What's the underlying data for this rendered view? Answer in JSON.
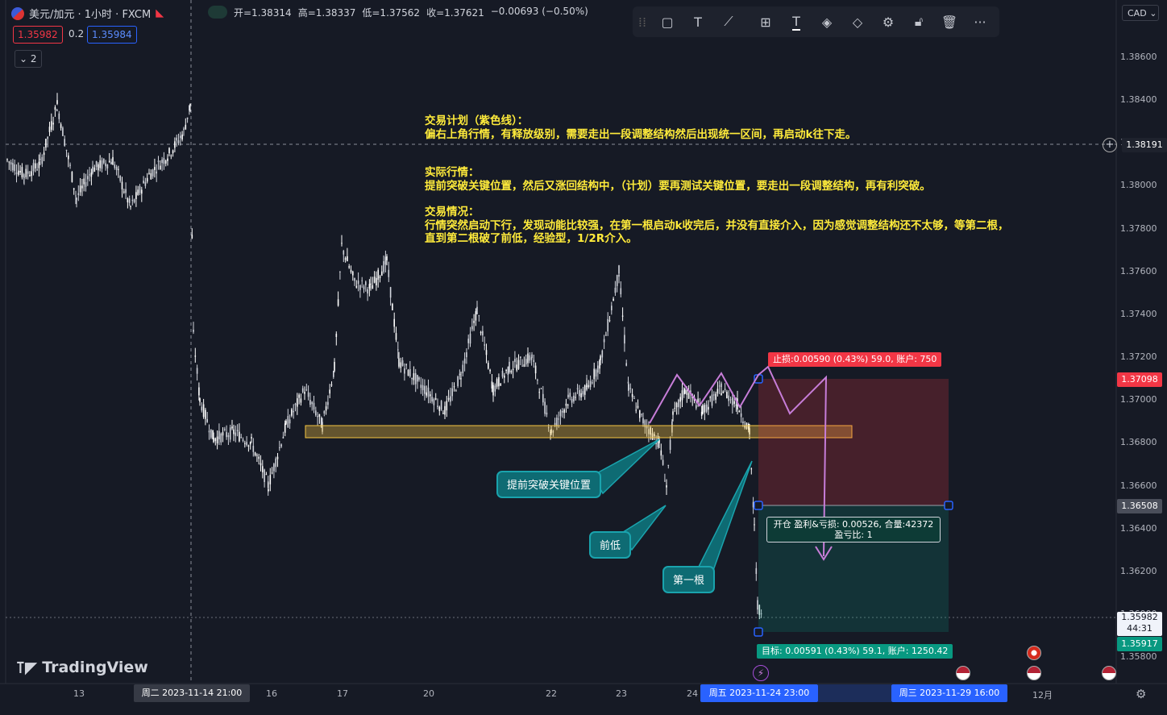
{
  "symbol": {
    "title": "美元/加元 · 1小时 · FXCM",
    "bid": "1.35982",
    "spread": "0.2",
    "ask": "1.35984",
    "indicators_toggle": "2"
  },
  "ohlc": {
    "open": "开=1.38314",
    "high": "高=1.38337",
    "low": "低=1.37562",
    "close": "收=1.37621",
    "change": "−0.00693 (−0.50%)"
  },
  "toolbar": {
    "icons": [
      "drag-handle-icon",
      "rectangle-icon",
      "text-icon",
      "brush-icon",
      "template-icon",
      "text-color-icon",
      "fill-bucket-icon",
      "border-color-icon",
      "settings-icon",
      "unlock-icon",
      "trash-icon",
      "more-icon"
    ]
  },
  "currency": "CAD",
  "price_axis": {
    "labels": [
      "1.38600",
      "1.38400",
      "1.38200",
      "1.38000",
      "1.37800",
      "1.37600",
      "1.37400",
      "1.37200",
      "1.37000",
      "1.36800",
      "1.36600",
      "1.36400",
      "1.36200",
      "1.36000",
      "1.35800"
    ],
    "crosshair_price": "1.38191",
    "stop_price": "1.37098",
    "entry_price": "1.36508",
    "current_price": "1.35982",
    "countdown": "44:31",
    "target_price": "1.35917"
  },
  "time_axis": {
    "labels": [
      "13",
      "16",
      "17",
      "20",
      "22",
      "23",
      "24",
      "12月"
    ],
    "crosshair_time": "周二 2023-11-14   21:00",
    "range_start": "周五 2023-11-24   23:00",
    "range_end": "周三 2023-11-29   16:00"
  },
  "annotations": {
    "plan_title": "交易计划（紫色线）：",
    "plan_text": "偏右上角行情，有释放级别，需要走出一段调整结构然后出现统一区间，再启动k往下走。",
    "actual_title": "实际行情：",
    "actual_text": "提前突破关键位置，然后又涨回结构中，（计划）要再测试关键位置，要走出一段调整结构，再有利突破。",
    "situation_title": "交易情况：",
    "situation_line1": "行情突然启动下行，发现动能比较强，在第一根启动k收完后，并没有直接介入，因为感觉调整结构还不太够，等第二根，",
    "situation_line2": "直到第二根破了前低，经验型，1/2R介入。"
  },
  "callouts": {
    "breakout": "提前突破关键位置",
    "prior_low": "前低",
    "first_bar": "第一根"
  },
  "position": {
    "stop_label": "止损:0.00590 (0.43%) 59.0, 账户: 750",
    "open_line1": "开仓 盈利&亏损: 0.00526, 合量:42372",
    "open_line2": "盈亏比: 1",
    "target_label": "目标: 0.00591 (0.43%) 59.1, 账户: 1250.42"
  },
  "brand": "TradingView",
  "colors": {
    "background": "#161a25",
    "up_candle": "#ffffff",
    "key_zone": "#f5c542",
    "plan_line": "#c77dd8",
    "stop_zone": "#f23645",
    "target_zone": "#089981",
    "annotation_text": "#ffeb3b",
    "callout_fill": "#0e6b73"
  }
}
